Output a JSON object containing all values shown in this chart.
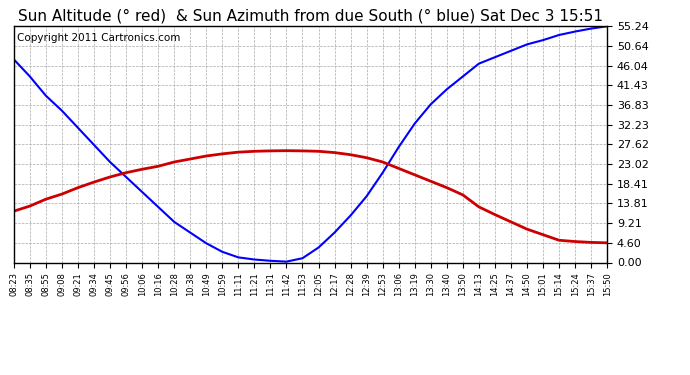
{
  "title": "Sun Altitude (° red)  & Sun Azimuth from due South (° blue) Sat Dec 3 15:51",
  "copyright": "Copyright 2011 Cartronics.com",
  "background_color": "#ffffff",
  "plot_bg_color": "#ffffff",
  "grid_color": "#aaaaaa",
  "yticks": [
    0.0,
    4.6,
    9.21,
    13.81,
    18.41,
    23.02,
    27.62,
    32.23,
    36.83,
    41.43,
    46.04,
    50.64,
    55.24
  ],
  "ymax": 55.24,
  "ymin": 0.0,
  "x_labels": [
    "08:23",
    "08:35",
    "08:55",
    "09:08",
    "09:21",
    "09:34",
    "09:45",
    "09:56",
    "10:06",
    "10:16",
    "10:28",
    "10:38",
    "10:49",
    "10:59",
    "11:11",
    "11:21",
    "11:31",
    "11:42",
    "11:53",
    "12:05",
    "12:17",
    "12:28",
    "12:39",
    "12:53",
    "13:06",
    "13:19",
    "13:30",
    "13:40",
    "13:50",
    "14:13",
    "14:25",
    "14:37",
    "14:50",
    "15:01",
    "15:14",
    "15:24",
    "15:37",
    "15:50"
  ],
  "blue_line_color": "#0000ff",
  "red_line_color": "#cc0000",
  "title_fontsize": 11,
  "copyright_fontsize": 7.5,
  "blue_values": [
    47.5,
    43.5,
    39.0,
    35.5,
    31.5,
    27.5,
    23.5,
    20.0,
    16.5,
    13.0,
    9.5,
    7.0,
    4.5,
    2.5,
    1.2,
    0.7,
    0.4,
    0.2,
    1.0,
    3.5,
    7.0,
    11.0,
    15.5,
    21.0,
    27.0,
    32.5,
    37.0,
    40.5,
    43.5,
    46.5,
    48.0,
    49.5,
    51.0,
    52.0,
    53.2,
    54.0,
    54.7,
    55.24
  ],
  "red_values": [
    12.0,
    13.2,
    14.8,
    16.0,
    17.5,
    18.8,
    20.0,
    21.0,
    21.8,
    22.5,
    23.5,
    24.2,
    24.9,
    25.4,
    25.8,
    26.0,
    26.1,
    26.15,
    26.1,
    26.0,
    25.7,
    25.2,
    24.5,
    23.5,
    22.0,
    20.5,
    19.0,
    17.5,
    15.8,
    13.0,
    11.2,
    9.5,
    7.8,
    6.5,
    5.2,
    4.9,
    4.7,
    4.6
  ]
}
